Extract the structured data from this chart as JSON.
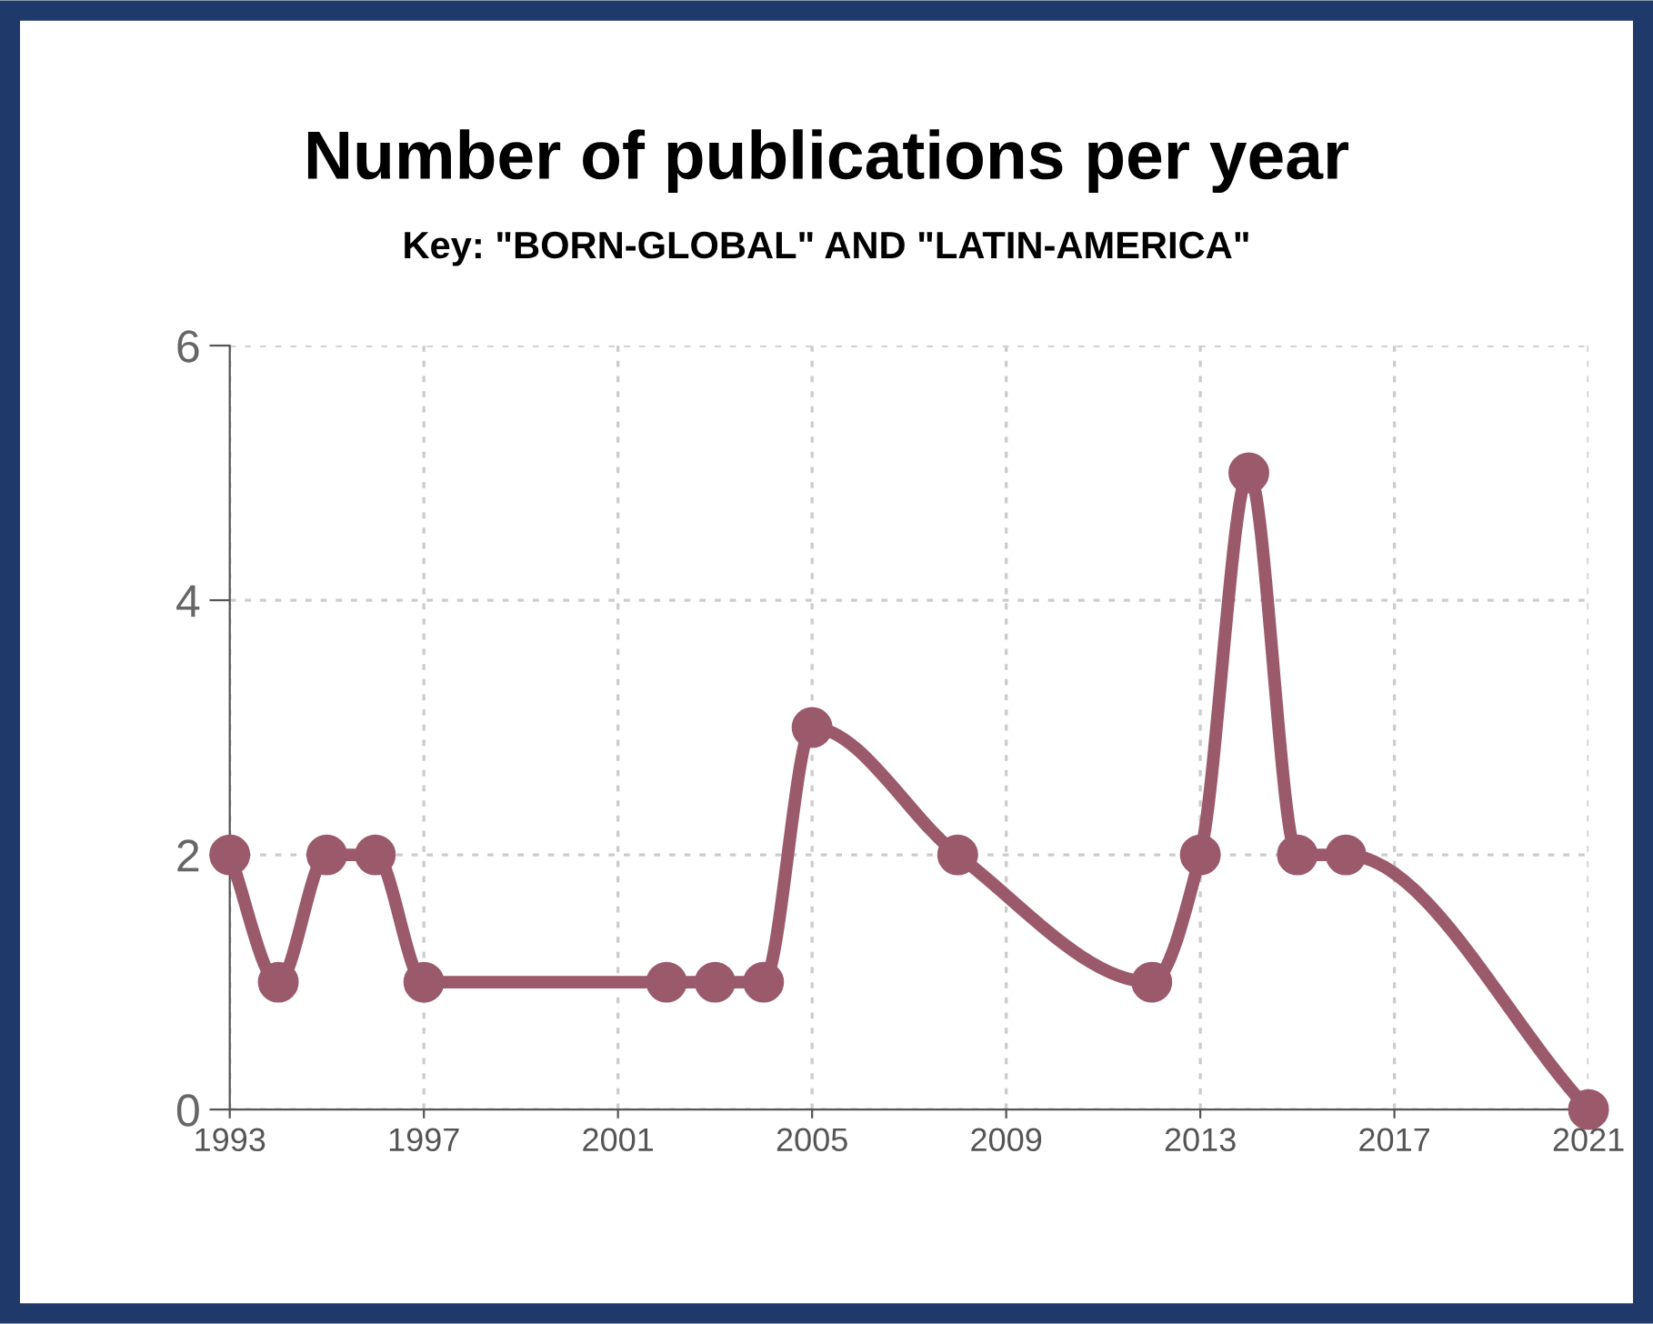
{
  "chart_data": {
    "type": "line",
    "title": "Number of publications per year",
    "subtitle": "Key: \"BORN-GLOBAL\" AND \"LATIN-AMERICA\"",
    "x": [
      1993,
      1994,
      1995,
      1996,
      1997,
      2002,
      2003,
      2004,
      2005,
      2008,
      2012,
      2013,
      2014,
      2015,
      2016,
      2021
    ],
    "series": [
      {
        "color": "#9b5a6c",
        "values": [
          2,
          1,
          2,
          2,
          1,
          1,
          1,
          1,
          3,
          2,
          1,
          2,
          5,
          2,
          2,
          0
        ]
      }
    ],
    "xlim": [
      1993,
      2021
    ],
    "xticks": [
      1993,
      1997,
      2001,
      2005,
      2009,
      2013,
      2017,
      2021
    ],
    "ylim": [
      0,
      6
    ],
    "yticks": [
      0,
      2,
      4,
      6
    ],
    "grid": true,
    "marker": "circle",
    "line_style": "solid"
  }
}
